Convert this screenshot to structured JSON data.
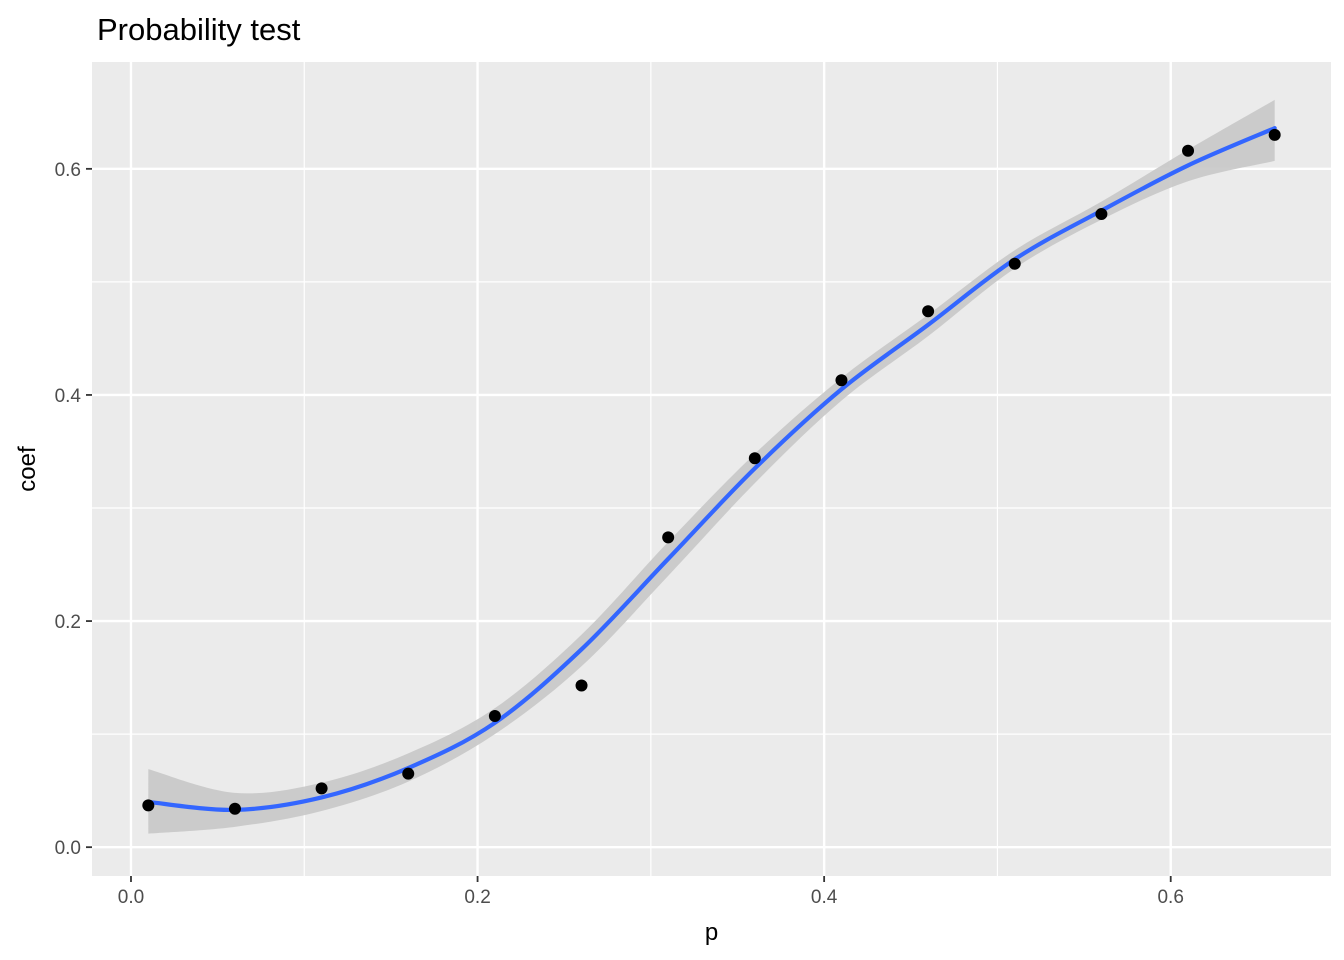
{
  "chart_data": {
    "type": "scatter",
    "title": "Probability test",
    "xlabel": "p",
    "ylabel": "coef",
    "xlim": [
      -0.0225,
      0.6925
    ],
    "ylim": [
      -0.0255,
      0.6945
    ],
    "x_ticks": [
      0.0,
      0.2,
      0.4,
      0.6
    ],
    "x_tick_labels": [
      "0.0",
      "0.2",
      "0.4",
      "0.6"
    ],
    "y_ticks": [
      0.0,
      0.2,
      0.4,
      0.6
    ],
    "y_tick_labels": [
      "0.0",
      "0.2",
      "0.4",
      "0.6"
    ],
    "grid": true,
    "legend": "none",
    "colors": {
      "panel": "#ebebeb",
      "grid": "#ffffff",
      "points": "#000000",
      "smooth_line": "#3366ff",
      "ribbon": "#c8c8c8"
    },
    "points": {
      "x": [
        0.01,
        0.06,
        0.11,
        0.16,
        0.21,
        0.26,
        0.31,
        0.36,
        0.41,
        0.46,
        0.51,
        0.56,
        0.61,
        0.66
      ],
      "y": [
        0.037,
        0.034,
        0.052,
        0.065,
        0.116,
        0.143,
        0.274,
        0.344,
        0.413,
        0.474,
        0.516,
        0.56,
        0.616,
        0.63
      ]
    },
    "smooth": {
      "x": [
        0.01,
        0.06,
        0.11,
        0.16,
        0.21,
        0.26,
        0.31,
        0.36,
        0.41,
        0.46,
        0.51,
        0.56,
        0.61,
        0.66
      ],
      "y": [
        0.04,
        0.033,
        0.044,
        0.07,
        0.11,
        0.175,
        0.255,
        0.335,
        0.405,
        0.462,
        0.52,
        0.563,
        0.603,
        0.636
      ],
      "ymin": [
        0.012,
        0.018,
        0.032,
        0.058,
        0.1,
        0.16,
        0.24,
        0.322,
        0.395,
        0.452,
        0.512,
        0.555,
        0.589,
        0.607
      ],
      "ymax": [
        0.069,
        0.048,
        0.057,
        0.083,
        0.123,
        0.188,
        0.27,
        0.348,
        0.415,
        0.471,
        0.528,
        0.571,
        0.617,
        0.661
      ]
    }
  }
}
